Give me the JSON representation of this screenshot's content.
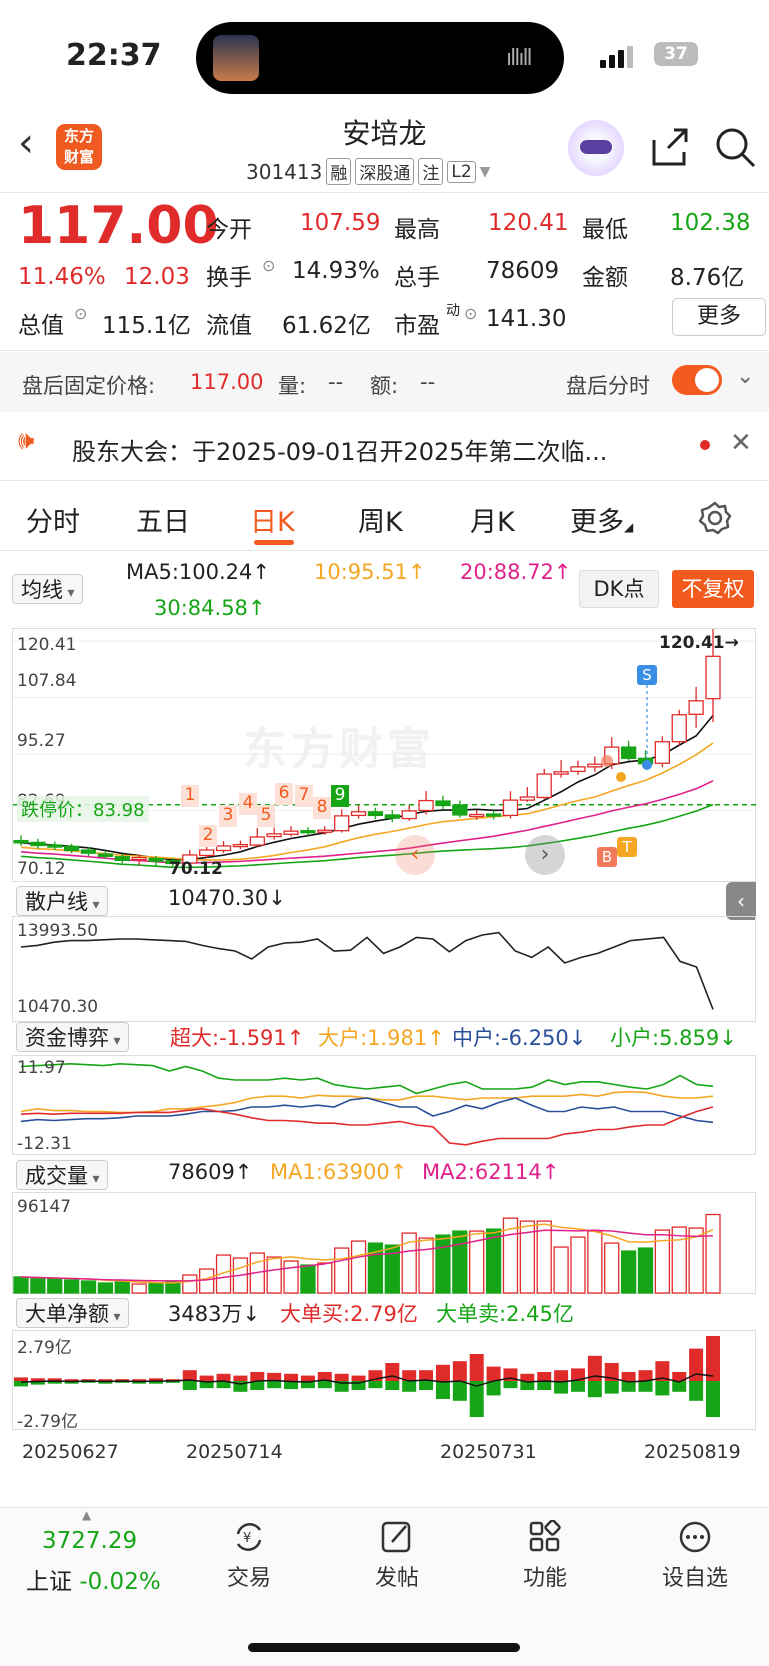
{
  "status_bar": {
    "time": "22:37",
    "battery": "37"
  },
  "header": {
    "title": "安培龙",
    "code": "301413",
    "tags": [
      "融",
      "深股通",
      "注",
      "L2"
    ],
    "logo_line1": "东方",
    "logo_line2": "财富"
  },
  "quote": {
    "price": "117.00",
    "change_pct": "11.46%",
    "change": "12.03",
    "open_label": "今开",
    "open": "107.59",
    "high_label": "最高",
    "high": "120.41",
    "low_label": "最低",
    "low": "102.38",
    "turnover_label": "换手",
    "turnover": "14.93%",
    "volume_label": "总手",
    "volume": "78609",
    "amount_label": "金额",
    "amount": "8.76亿",
    "mktcap_label": "总值",
    "mktcap": "115.1亿",
    "float_label": "流值",
    "float_cap": "61.62亿",
    "pe_label": "市盈",
    "pe_sup": "动",
    "pe": "141.30",
    "more_label": "更多"
  },
  "after_hours": {
    "label": "盘后固定价格:",
    "price": "117.00",
    "vol_label": "量:",
    "vol": "--",
    "amt_label": "额:",
    "amt": "--",
    "toggle_label": "盘后分时"
  },
  "notice": {
    "text": "股东大会：于2025-09-01召开2025年第二次临..."
  },
  "tabs": [
    "分时",
    "五日",
    "日K",
    "周K",
    "月K",
    "更多"
  ],
  "ma": {
    "selector": "均线",
    "ma5": "MA5:100.24↑",
    "ma10": "10:95.51↑",
    "ma20": "20:88.72↑",
    "ma30": "30:84.58↑",
    "dk_label": "DK点",
    "fq_label": "不复权"
  },
  "kline": {
    "y_labels": [
      "120.41",
      "107.84",
      "95.27",
      "82.69",
      "70.12"
    ],
    "high_marker": "120.41→",
    "low_marker": "70.12",
    "limit_down_label": "跌停价：83.98",
    "markers": [
      "1",
      "2",
      "3",
      "4",
      "5",
      "6",
      "7",
      "8",
      "9"
    ],
    "signals": {
      "s": "S",
      "b": "B",
      "t": "T"
    }
  },
  "sanhu": {
    "selector": "散户线",
    "value": "10470.30↓",
    "ymax": "13993.50",
    "ymin": "10470.30"
  },
  "fund": {
    "selector": "资金博弈",
    "super": "超大:-1.591↑",
    "large": "大户:1.981↑",
    "mid": "中户:-6.250↓",
    "small": "小户:5.859↓",
    "ymax": "11.97",
    "ymin": "-12.31"
  },
  "volume": {
    "selector": "成交量",
    "value": "78609↑",
    "ma1": "MA1:63900↑",
    "ma2": "MA2:62114↑",
    "ymax": "96147"
  },
  "bigorder": {
    "selector": "大单净额",
    "value": "3483万↓",
    "buy": "大单买:2.79亿",
    "sell": "大单卖:2.45亿",
    "ymax": "2.79亿",
    "ymin": "-2.79亿"
  },
  "dates": [
    "20250627",
    "20250714",
    "20250731",
    "20250819"
  ],
  "bottom_nav": {
    "index_value": "3727.29",
    "index_name": "上证",
    "index_change": "-0.02%",
    "trade": "交易",
    "post": "发帖",
    "func": "功能",
    "watch": "设自选"
  },
  "colors": {
    "up": "#e02b2b",
    "down": "#16a516",
    "accent": "#f25a1e",
    "ma5": "#111111",
    "ma10": "#f5a623",
    "ma20": "#e0218a",
    "ma30": "#16a516"
  },
  "chart_data": {
    "type": "candlestick",
    "candles": [
      [
        76.0,
        75.5,
        77.2,
        74.8
      ],
      [
        75.6,
        74.9,
        76.4,
        74.2
      ],
      [
        75.0,
        74.6,
        75.8,
        73.9
      ],
      [
        74.7,
        73.8,
        75.3,
        73.2
      ],
      [
        73.9,
        73.2,
        74.6,
        72.5
      ],
      [
        73.0,
        72.5,
        73.8,
        71.9
      ],
      [
        72.4,
        71.6,
        73.0,
        70.9
      ],
      [
        71.8,
        72.2,
        72.9,
        70.6
      ],
      [
        72.0,
        71.4,
        72.6,
        70.3
      ],
      [
        71.5,
        70.9,
        72.2,
        70.12
      ],
      [
        71.0,
        72.8,
        73.9,
        70.6
      ],
      [
        72.7,
        73.9,
        75.2,
        72.1
      ],
      [
        73.8,
        74.8,
        75.9,
        73.2
      ],
      [
        74.7,
        75.1,
        76.0,
        74.1
      ],
      [
        75.0,
        76.8,
        78.8,
        74.6
      ],
      [
        76.9,
        77.5,
        78.9,
        76.2
      ],
      [
        77.4,
        78.1,
        79.2,
        76.9
      ],
      [
        78.2,
        77.9,
        79.0,
        77.1
      ],
      [
        77.9,
        78.3,
        79.2,
        77.3
      ],
      [
        78.2,
        81.5,
        82.9,
        77.8
      ],
      [
        81.6,
        82.4,
        83.9,
        80.9
      ],
      [
        82.4,
        81.6,
        83.3,
        80.8
      ],
      [
        81.7,
        81.0,
        82.8,
        80.1
      ],
      [
        80.9,
        82.6,
        83.9,
        80.4
      ],
      [
        82.7,
        84.9,
        87.0,
        81.8
      ],
      [
        84.8,
        83.8,
        86.0,
        83.0
      ],
      [
        83.9,
        81.7,
        84.9,
        81.1
      ],
      [
        81.7,
        81.8,
        82.8,
        80.6
      ],
      [
        81.9,
        81.5,
        82.7,
        80.7
      ],
      [
        81.6,
        85.0,
        87.0,
        80.9
      ],
      [
        85.0,
        85.7,
        87.9,
        84.6
      ],
      [
        85.6,
        90.8,
        92.0,
        85.2
      ],
      [
        90.8,
        91.3,
        93.9,
        90.0
      ],
      [
        91.4,
        92.4,
        93.8,
        90.6
      ],
      [
        92.4,
        93.0,
        94.7,
        91.3
      ],
      [
        93.1,
        96.8,
        99.0,
        91.9
      ],
      [
        96.8,
        94.3,
        98.2,
        93.7
      ],
      [
        94.3,
        93.1,
        96.1,
        92.1
      ],
      [
        93.2,
        98.0,
        99.2,
        92.3
      ],
      [
        98.0,
        104.0,
        105.1,
        97.2
      ],
      [
        104.1,
        107.1,
        110.2,
        101.1
      ],
      [
        107.59,
        117.0,
        120.41,
        102.38
      ]
    ],
    "volume_ymax": 96147,
    "volumes": [
      16,
      15,
      14,
      13,
      12,
      10,
      11,
      9,
      10,
      11,
      18,
      24,
      38,
      35,
      40,
      36,
      32,
      28,
      30,
      45,
      52,
      50,
      48,
      60,
      55,
      58,
      62,
      62,
      64,
      75,
      72,
      72,
      46,
      56,
      62,
      50,
      42,
      45,
      63,
      66,
      65,
      78.6
    ]
  }
}
